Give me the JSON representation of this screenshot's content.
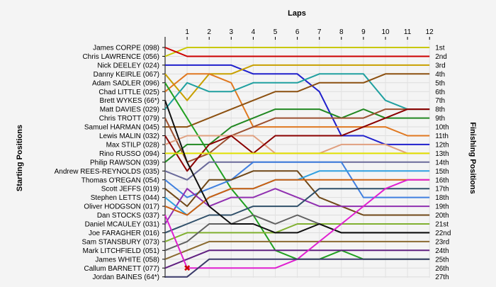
{
  "chart_data": {
    "type": "line",
    "title": "Laps",
    "ylabel_left": "Starting Positions",
    "ylabel_right": "Finishing Positions",
    "laps": [
      1,
      2,
      3,
      4,
      5,
      6,
      7,
      8,
      9,
      10,
      11,
      12
    ],
    "x_ticks": [
      "1",
      "2",
      "3",
      "4",
      "5",
      "6",
      "7",
      "8",
      "9",
      "10",
      "11",
      "12"
    ],
    "drivers": [
      "James CORPE (098)",
      "Chris LAWRENCE (056)",
      "Nick DEELEY (024)",
      "Danny KEIRLE (067)",
      "Adam SADLER (096)",
      "Chad LITTLE (025)",
      "Brett WYKES (66*)",
      "Matt DAVIES (029)",
      "Chris TROTT (079)",
      "Samuel HARMAN (045)",
      "Lewis MALIN (032)",
      "Max STILP (028)",
      "Rino RUSSO (094)",
      "Philip RAWSON (039)",
      "Andrew REES-REYNOLDS (035)",
      "Thomas O'REGAN (054)",
      "Scott JEFFS (019)",
      "Stephen LETTS (044)",
      "Oliver HODGSON (017)",
      "Dan STOCKS (037)",
      "Daniel MCAULEY (031)",
      "Joe FARAGHER (016)",
      "Sam STANSBURY (073)",
      "Mark LITCHFIELD (051)",
      "James WHITE (058)",
      "Callum BARNETT (077)",
      "Jordan BAINES (64*)"
    ],
    "finish_labels": [
      "1st",
      "2nd",
      "3rd",
      "4th",
      "5th",
      "6th",
      "7th",
      "8th",
      "9th",
      "10th",
      "11th",
      "12th",
      "13th",
      "14th",
      "15th",
      "16th",
      "17th",
      "18th",
      "19th",
      "20th",
      "21st",
      "22nd",
      "23rd",
      "24th",
      "25th",
      "26th",
      "27th"
    ],
    "series": [
      {
        "color": "#c8c800",
        "positions": [
          2,
          1,
          1,
          1,
          1,
          1,
          1,
          1,
          1,
          1,
          1,
          1,
          1
        ]
      },
      {
        "color": "#cc0000",
        "positions": [
          1,
          2,
          2,
          2,
          2,
          2,
          2,
          2,
          2,
          2,
          2,
          2,
          2
        ]
      },
      {
        "color": "#2020cc",
        "positions": [
          3,
          3,
          3,
          3,
          4,
          4,
          4,
          6,
          11,
          11,
          12,
          12,
          12
        ]
      },
      {
        "color": "#c8a000",
        "positions": [
          4,
          7,
          4,
          4,
          3,
          3,
          3,
          3,
          3,
          3,
          3,
          3,
          3
        ]
      },
      {
        "color": "#e07820",
        "positions": [
          6,
          4,
          4,
          5,
          10,
          10,
          10,
          10,
          10,
          10,
          10,
          11,
          11
        ]
      },
      {
        "color": "#20a0a0",
        "positions": [
          8,
          5,
          6,
          6,
          5,
          5,
          5,
          4,
          4,
          4,
          7,
          8,
          8
        ]
      },
      {
        "color": "#8c5010",
        "positions": [
          10,
          10,
          9,
          8,
          7,
          6,
          6,
          5,
          5,
          5,
          4,
          4,
          4
        ]
      },
      {
        "color": "#20a020",
        "positions": [
          5,
          9,
          13,
          17,
          20,
          24,
          25,
          25,
          24,
          25,
          25,
          25,
          25
        ]
      },
      {
        "color": "#228822",
        "positions": [
          14,
          12,
          12,
          10,
          9,
          8,
          8,
          8,
          9,
          8,
          9,
          9,
          9
        ]
      },
      {
        "color": "#9c5030",
        "positions": [
          9,
          14,
          13,
          11,
          10,
          9,
          9,
          9,
          9,
          9,
          8,
          8,
          8
        ]
      },
      {
        "color": "#e0a080",
        "positions": [
          12,
          11,
          11,
          11,
          11,
          13,
          13,
          13,
          12,
          12,
          12,
          13,
          13
        ]
      },
      {
        "color": "#8a0000",
        "positions": [
          11,
          15,
          12,
          11,
          13,
          11,
          11,
          11,
          11,
          10,
          9,
          8,
          8
        ]
      },
      {
        "color": "#e0e000",
        "positions": [
          13,
          13,
          13,
          13,
          13,
          13,
          13,
          13,
          13,
          13,
          13,
          13,
          13
        ]
      },
      {
        "color": "#6a6a9a",
        "positions": [
          15,
          16,
          14,
          14,
          14,
          14,
          14,
          14,
          14,
          14,
          14,
          14,
          14
        ]
      },
      {
        "color": "#4080e0",
        "positions": [
          16,
          18,
          17,
          16,
          14,
          14,
          14,
          14,
          14,
          18,
          18,
          18,
          18
        ]
      },
      {
        "color": "#704818",
        "positions": [
          17,
          19,
          16,
          16,
          15,
          15,
          15,
          18,
          19,
          20,
          20,
          20,
          20
        ]
      },
      {
        "color": "#9030b0",
        "positions": [
          21,
          17,
          19,
          18,
          18,
          17,
          18,
          19,
          19,
          19,
          19,
          19,
          19
        ]
      },
      {
        "color": "#30a0e0",
        "positions": [
          18,
          20,
          18,
          17,
          17,
          16,
          16,
          15,
          15,
          15,
          15,
          15,
          15
        ]
      },
      {
        "color": "#cc6010",
        "positions": [
          19,
          20,
          18,
          17,
          17,
          16,
          16,
          16,
          16,
          16,
          16,
          16,
          16
        ]
      },
      {
        "color": "#30506a",
        "positions": [
          22,
          21,
          20,
          20,
          19,
          19,
          19,
          17,
          17,
          17,
          17,
          17,
          17
        ]
      },
      {
        "color": "#80b030",
        "positions": [
          23,
          22,
          22,
          22,
          22,
          22,
          21,
          21,
          21,
          21,
          21,
          21,
          21
        ]
      },
      {
        "color": "#606060",
        "positions": [
          24,
          23,
          21,
          21,
          20,
          21,
          20,
          21,
          22,
          22,
          22,
          22,
          22
        ]
      },
      {
        "color": "#101010",
        "positions": [
          7,
          14,
          19,
          21,
          21,
          22,
          22,
          21,
          22,
          22,
          22,
          22,
          22
        ]
      },
      {
        "color": "#8a6a30",
        "positions": [
          25,
          24,
          23,
          23,
          23,
          23,
          23,
          23,
          23,
          23,
          23,
          23,
          23
        ]
      },
      {
        "color": "#602080",
        "positions": [
          26,
          25,
          24,
          24,
          24,
          24,
          24,
          24,
          24,
          24,
          24,
          24,
          24
        ]
      },
      {
        "color": "#e020d0",
        "positions": [
          20,
          26,
          26,
          26,
          26,
          26,
          25,
          23,
          21,
          19,
          17,
          16,
          16
        ]
      },
      {
        "color": "#3a3a6a",
        "positions": [
          27,
          27,
          25,
          25,
          25,
          25,
          25,
          25,
          25,
          25,
          25,
          25,
          25
        ]
      }
    ],
    "retired_marker": {
      "color": "#cc0000",
      "symbol": "✖",
      "lap": 1,
      "position": 26
    },
    "grid": true
  }
}
